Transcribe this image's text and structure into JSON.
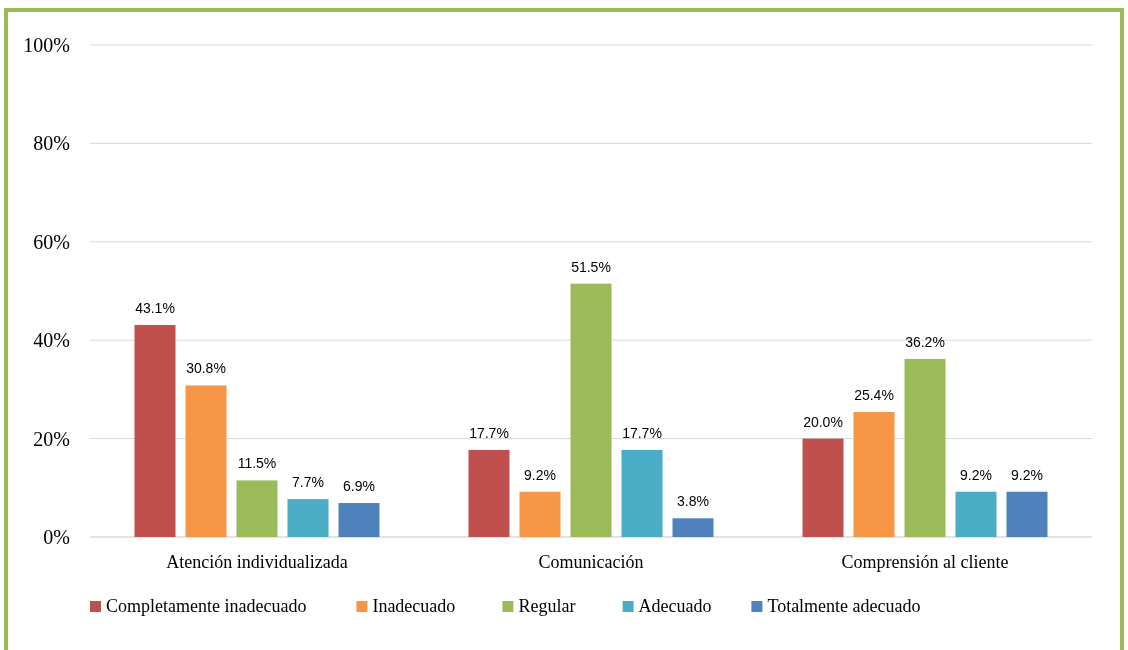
{
  "chart_data": {
    "type": "bar",
    "categories": [
      "Atención individualizada",
      "Comunicación",
      "Comprensión al cliente"
    ],
    "series": [
      {
        "name": "Completamente inadecuado",
        "color": "#c0504d",
        "values": [
          43.1,
          17.7,
          20.0
        ],
        "value_labels": [
          "43.1%",
          "17.7%",
          "20.0%"
        ]
      },
      {
        "name": "Inadecuado",
        "color": "#f79646",
        "values": [
          30.8,
          9.2,
          25.4
        ],
        "value_labels": [
          "30.8%",
          "9.2%",
          "25.4%"
        ]
      },
      {
        "name": "Regular",
        "color": "#9bbb59",
        "values": [
          11.5,
          51.5,
          36.2
        ],
        "value_labels": [
          "11.5%",
          "51.5%",
          "36.2%"
        ]
      },
      {
        "name": "Adecuado",
        "color": "#4bacc6",
        "values": [
          7.7,
          17.7,
          9.2
        ],
        "value_labels": [
          "7.7%",
          "17.7%",
          "9.2%"
        ]
      },
      {
        "name": "Totalmente adecuado",
        "color": "#4f81bd",
        "values": [
          6.9,
          3.8,
          9.2
        ],
        "value_labels": [
          "6.9%",
          "3.8%",
          "9.2%"
        ]
      }
    ],
    "ylim": [
      0,
      100
    ],
    "yticks": [
      {
        "value": 0,
        "label": "0%"
      },
      {
        "value": 20,
        "label": "20%"
      },
      {
        "value": 40,
        "label": "40%"
      },
      {
        "value": 60,
        "label": "60%"
      },
      {
        "value": 80,
        "label": "80%"
      },
      {
        "value": 100,
        "label": "100%"
      }
    ],
    "grid": "y",
    "legend": "bottom"
  }
}
